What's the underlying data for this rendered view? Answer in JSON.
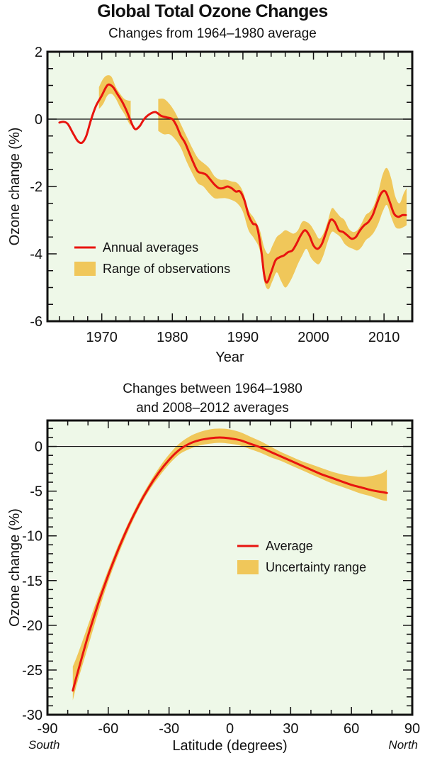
{
  "title": "Global Total Ozone Changes",
  "colors": {
    "plot_background": "#eef8e8",
    "line": "#e8140f",
    "band": "#f0c75a",
    "axis": "#111111"
  },
  "chart_data": [
    {
      "type": "line",
      "subtitle": "Changes from 1964–1980 average",
      "xlabel": "Year",
      "ylabel": "Ozone change (%)",
      "xlim": [
        1962.3,
        2014
      ],
      "ylim": [
        -6,
        2
      ],
      "xticks": [
        1970,
        1980,
        1990,
        2000,
        2010
      ],
      "xtick_labels": [
        "1970",
        "1980",
        "1990",
        "2000",
        "2010"
      ],
      "yticks": [
        2,
        0,
        -2,
        -4,
        -6
      ],
      "ytick_labels": [
        "2",
        "0",
        "-2",
        "-4",
        "-6"
      ],
      "zero_line": true,
      "legend_position": "lower-left",
      "series": [
        {
          "name": "Annual averages",
          "kind": "line",
          "x": [
            1964.0,
            1964.6,
            1965.2,
            1966.0,
            1966.6,
            1967.2,
            1967.8,
            1968.5,
            1969.2,
            1970.0,
            1970.6,
            1971.0,
            1971.6,
            1972.2,
            1972.8,
            1973.4,
            1974.0,
            1974.4,
            1974.8,
            1975.4,
            1976.0,
            1976.8,
            1977.6,
            1978.4,
            1979.2,
            1980.0,
            1980.6,
            1981.2,
            1981.8,
            1982.4,
            1983.0,
            1983.6,
            1984.2,
            1984.8,
            1985.4,
            1986.0,
            1986.6,
            1987.2,
            1987.8,
            1988.4,
            1989.0,
            1989.6,
            1990.2,
            1990.8,
            1991.4,
            1992.0,
            1992.6,
            1993.0,
            1993.4,
            1994.0,
            1994.6,
            1995.2,
            1995.8,
            1996.4,
            1997.0,
            1997.6,
            1998.2,
            1998.8,
            1999.4,
            2000.0,
            2000.6,
            2001.2,
            2001.8,
            2002.4,
            2003.0,
            2003.6,
            2004.2,
            2004.8,
            2005.4,
            2006.0,
            2006.6,
            2007.2,
            2007.8,
            2008.4,
            2009.0,
            2009.6,
            2010.2,
            2010.8,
            2011.4,
            2012.0,
            2012.6,
            2013.1
          ],
          "y": [
            -0.1,
            -0.08,
            -0.15,
            -0.45,
            -0.65,
            -0.7,
            -0.5,
            0.0,
            0.4,
            0.7,
            0.95,
            1.03,
            0.95,
            0.75,
            0.55,
            0.3,
            0.0,
            -0.2,
            -0.3,
            -0.2,
            0.0,
            0.15,
            0.21,
            0.1,
            0.05,
            0.0,
            -0.2,
            -0.5,
            -0.7,
            -1.0,
            -1.3,
            -1.55,
            -1.6,
            -1.65,
            -1.8,
            -1.95,
            -2.05,
            -2.05,
            -2.0,
            -2.05,
            -2.15,
            -2.15,
            -2.4,
            -2.85,
            -3.1,
            -3.2,
            -3.9,
            -4.6,
            -4.85,
            -4.55,
            -4.2,
            -4.1,
            -4.05,
            -3.95,
            -3.9,
            -3.7,
            -3.45,
            -3.3,
            -3.45,
            -3.75,
            -3.85,
            -3.7,
            -3.35,
            -3.0,
            -3.05,
            -3.3,
            -3.35,
            -3.45,
            -3.55,
            -3.5,
            -3.3,
            -3.15,
            -3.05,
            -2.85,
            -2.5,
            -2.2,
            -2.15,
            -2.45,
            -2.8,
            -2.9,
            -2.85,
            -2.85
          ]
        },
        {
          "name": "Range of observations",
          "kind": "band",
          "segments": [
            {
              "x": [
                1969.6,
                1970.2,
                1970.8,
                1971.4,
                1972.0,
                1972.6,
                1973.2,
                1973.8,
                1974.1
              ],
              "upper": [
                0.95,
                1.2,
                1.3,
                1.25,
                0.95,
                0.75,
                0.6,
                0.55,
                0.55
              ],
              "lower": [
                0.3,
                0.45,
                0.7,
                0.75,
                0.6,
                0.35,
                0.15,
                -0.1,
                -0.2
              ]
            },
            {
              "x": [
                1978.0,
                1978.8,
                1979.6,
                1980.4,
                1981.2,
                1982.0,
                1982.8,
                1983.6,
                1984.4,
                1985.2,
                1986.0,
                1986.8,
                1987.6,
                1988.4,
                1989.2,
                1990.0,
                1990.8,
                1991.6,
                1992.4,
                1993.0,
                1993.6,
                1994.2,
                1994.8,
                1995.4,
                1996.0,
                1996.6,
                1997.2,
                1997.8,
                1998.4,
                1999.0,
                1999.6,
                2000.2,
                2000.8,
                2001.4,
                2002.0,
                2002.6,
                2003.2,
                2003.8,
                2004.4,
                2005.0,
                2005.6,
                2006.2,
                2006.8,
                2007.4,
                2008.0,
                2008.6,
                2009.2,
                2009.8,
                2010.4,
                2011.0,
                2011.6,
                2012.2,
                2012.8,
                2013.2
              ],
              "upper": [
                0.6,
                0.6,
                0.45,
                0.2,
                -0.15,
                -0.5,
                -0.85,
                -1.15,
                -1.3,
                -1.45,
                -1.7,
                -1.8,
                -1.8,
                -1.85,
                -1.9,
                -2.15,
                -2.7,
                -2.95,
                -3.3,
                -3.8,
                -4.0,
                -3.75,
                -3.5,
                -3.4,
                -3.3,
                -3.35,
                -3.4,
                -3.3,
                -3.05,
                -3.05,
                -3.15,
                -3.35,
                -3.55,
                -3.4,
                -3.05,
                -2.65,
                -2.75,
                -2.9,
                -3.0,
                -3.25,
                -3.35,
                -3.3,
                -3.1,
                -2.85,
                -2.75,
                -2.55,
                -2.15,
                -1.65,
                -1.45,
                -1.75,
                -2.3,
                -2.5,
                -2.2,
                -2.05
              ],
              "lower": [
                -0.35,
                -0.45,
                -0.45,
                -0.6,
                -0.85,
                -1.25,
                -1.6,
                -1.9,
                -2.0,
                -2.2,
                -2.35,
                -2.35,
                -2.35,
                -2.4,
                -2.5,
                -2.75,
                -3.3,
                -3.55,
                -3.9,
                -4.8,
                -5.05,
                -4.8,
                -4.55,
                -4.8,
                -5.0,
                -4.85,
                -4.6,
                -4.3,
                -4.05,
                -3.85,
                -4.1,
                -4.25,
                -4.3,
                -4.05,
                -3.65,
                -3.35,
                -3.4,
                -3.5,
                -3.7,
                -3.8,
                -3.85,
                -3.9,
                -3.8,
                -3.6,
                -3.5,
                -3.35,
                -3.1,
                -2.75,
                -2.55,
                -2.9,
                -3.2,
                -3.25,
                -3.2,
                -3.15
              ]
            }
          ]
        }
      ],
      "legend": [
        {
          "label": "Annual averages",
          "kind": "line"
        },
        {
          "label": "Range of observations",
          "kind": "band"
        }
      ]
    },
    {
      "type": "line",
      "subtitle_lines": [
        "Changes between 1964–1980",
        "and 2008–2012 averages"
      ],
      "xlabel": "Latitude (degrees)",
      "xlabel_left": "South",
      "xlabel_right": "North",
      "ylabel": "Ozone change (%)",
      "xlim": [
        -90,
        90
      ],
      "ylim": [
        -30,
        2.9
      ],
      "xticks": [
        -90,
        -60,
        -30,
        0,
        30,
        60,
        90
      ],
      "xtick_labels": [
        "-90",
        "-60",
        "-30",
        "0",
        "30",
        "60",
        "90"
      ],
      "yticks": [
        0,
        -5,
        -10,
        -15,
        -20,
        -25,
        -30
      ],
      "ytick_labels": [
        "0",
        "-5",
        "-10",
        "-15",
        "-20",
        "-25",
        "-30"
      ],
      "zero_line": true,
      "legend_position": "center-right",
      "series": [
        {
          "name": "Average",
          "kind": "line",
          "x": [
            -77.5,
            -75,
            -70,
            -65,
            -60,
            -55,
            -50,
            -45,
            -40,
            -35,
            -30,
            -25,
            -20,
            -15,
            -10,
            -5,
            0,
            5,
            10,
            15,
            20,
            25,
            30,
            35,
            40,
            45,
            50,
            55,
            60,
            65,
            70,
            75,
            77.5
          ],
          "y": [
            -27.3,
            -25.2,
            -21.2,
            -17.6,
            -14.4,
            -11.5,
            -8.9,
            -6.6,
            -4.6,
            -2.9,
            -1.5,
            -0.4,
            0.3,
            0.7,
            0.9,
            1.0,
            0.9,
            0.7,
            0.3,
            -0.1,
            -0.6,
            -1.1,
            -1.6,
            -2.1,
            -2.6,
            -3.1,
            -3.5,
            -3.9,
            -4.3,
            -4.6,
            -4.9,
            -5.1,
            -5.2
          ]
        },
        {
          "name": "Uncertainty range",
          "kind": "band",
          "segments": [
            {
              "x": [
                -77.5,
                -75,
                -70,
                -65,
                -60,
                -55,
                -50,
                -45,
                -40,
                -35,
                -30,
                -25,
                -20,
                -15,
                -10,
                -5,
                0,
                5,
                10,
                15,
                20,
                25,
                30,
                35,
                40,
                45,
                50,
                55,
                60,
                65,
                70,
                75,
                77.5
              ],
              "upper": [
                -24.6,
                -23.2,
                -20.0,
                -16.8,
                -13.8,
                -11.0,
                -8.5,
                -6.2,
                -4.2,
                -2.4,
                -0.9,
                0.3,
                1.1,
                1.6,
                1.9,
                2.0,
                1.9,
                1.6,
                1.1,
                0.6,
                0.0,
                -0.6,
                -1.1,
                -1.6,
                -2.0,
                -2.4,
                -2.8,
                -3.1,
                -3.3,
                -3.4,
                -3.3,
                -3.0,
                -2.6
              ],
              "lower": [
                -28.4,
                -26.2,
                -22.4,
                -18.6,
                -15.1,
                -12.1,
                -9.4,
                -7.0,
                -5.0,
                -3.4,
                -2.0,
                -0.9,
                -0.3,
                0.1,
                0.3,
                0.4,
                0.3,
                0.1,
                -0.3,
                -0.7,
                -1.2,
                -1.6,
                -2.1,
                -2.6,
                -3.1,
                -3.6,
                -4.1,
                -4.5,
                -4.9,
                -5.3,
                -5.6,
                -6.0,
                -6.1
              ]
            }
          ]
        }
      ],
      "legend": [
        {
          "label": "Average",
          "kind": "line"
        },
        {
          "label": "Uncertainty range",
          "kind": "band"
        }
      ]
    }
  ]
}
